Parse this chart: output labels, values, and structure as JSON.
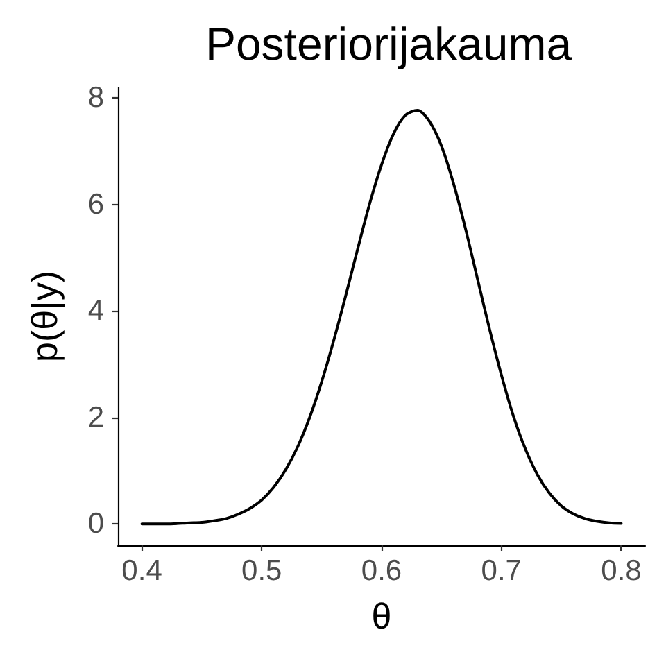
{
  "chart_data": {
    "type": "line",
    "title": "Posteriorijakauma",
    "xlabel": "θ",
    "ylabel": "p(θ|y)",
    "x": [
      0.4,
      0.42,
      0.44,
      0.45,
      0.46,
      0.47,
      0.48,
      0.49,
      0.5,
      0.51,
      0.52,
      0.53,
      0.54,
      0.55,
      0.56,
      0.57,
      0.58,
      0.59,
      0.6,
      0.61,
      0.62,
      0.63,
      0.64,
      0.65,
      0.66,
      0.67,
      0.68,
      0.69,
      0.7,
      0.71,
      0.72,
      0.73,
      0.74,
      0.75,
      0.76,
      0.77,
      0.78,
      0.79,
      0.8
    ],
    "series": [
      {
        "color": "#000000",
        "values": [
          0.0,
          0.0,
          0.02,
          0.03,
          0.06,
          0.1,
          0.18,
          0.29,
          0.45,
          0.69,
          1.02,
          1.45,
          2.0,
          2.67,
          3.44,
          4.28,
          5.16,
          6.01,
          6.75,
          7.33,
          7.68,
          7.77,
          7.56,
          7.1,
          6.4,
          5.55,
          4.61,
          3.67,
          2.8,
          2.03,
          1.41,
          0.93,
          0.58,
          0.34,
          0.19,
          0.1,
          0.05,
          0.02,
          0.01
        ]
      }
    ],
    "xlim": [
      0.38,
      0.82
    ],
    "xticks": [
      0.4,
      0.5,
      0.6,
      0.7,
      0.8
    ],
    "ylim": [
      -0.4,
      8.2
    ],
    "yticks": [
      0,
      2,
      4,
      6,
      8
    ],
    "marker": "none",
    "line_style": "solid"
  }
}
